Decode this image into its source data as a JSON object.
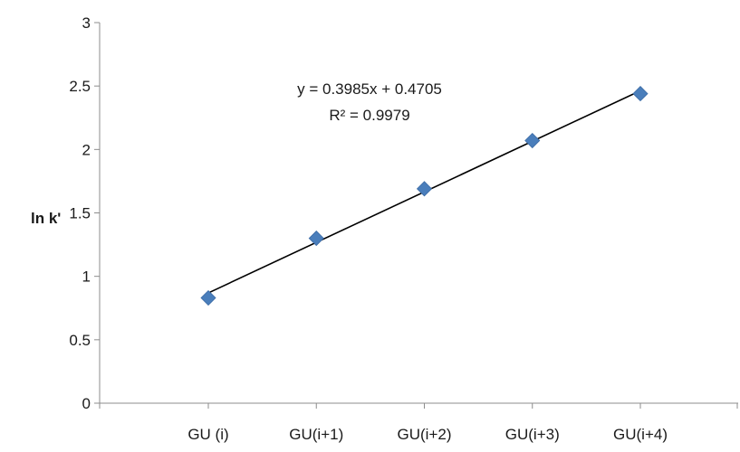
{
  "chart_data": {
    "type": "scatter",
    "title": "",
    "xlabel": "",
    "ylabel": "ln k'",
    "ylim": [
      0,
      3
    ],
    "yticks": [
      "0",
      "0.5",
      "1",
      "1.5",
      "2",
      "2.5",
      "3"
    ],
    "categories": [
      "GU (i)",
      "GU(i+1)",
      "GU(i+2)",
      "GU(i+3)",
      "GU(i+4)"
    ],
    "x": [
      1,
      2,
      3,
      4,
      5
    ],
    "values": [
      0.83,
      1.3,
      1.69,
      2.07,
      2.44
    ],
    "marker": "diamond",
    "marker_color": "#4a7ebb",
    "trendline": {
      "type": "linear",
      "slope": 0.3985,
      "intercept": 0.4705,
      "equation": "y = 0.3985x + 0.4705",
      "r_squared": "R² = 0.9979",
      "color": "#000000"
    },
    "grid": false,
    "legend": "none"
  }
}
